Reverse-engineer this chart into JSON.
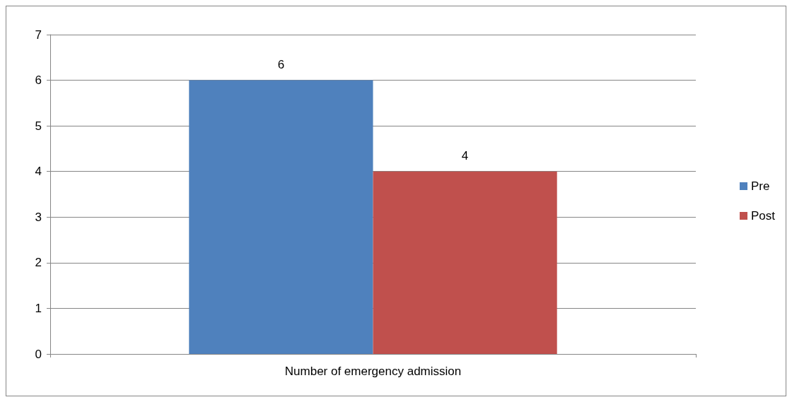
{
  "chart_data": {
    "type": "bar",
    "categories": [
      "Number of emergency admission"
    ],
    "series": [
      {
        "name": "Pre",
        "color": "#4f81bd",
        "values": [
          6
        ]
      },
      {
        "name": "Post",
        "color": "#c0504d",
        "values": [
          4
        ]
      }
    ],
    "ylim": [
      0,
      7
    ],
    "yticks": [
      0,
      1,
      2,
      3,
      4,
      5,
      6,
      7
    ],
    "grid": "y",
    "legend": "right",
    "data_labels": true
  }
}
